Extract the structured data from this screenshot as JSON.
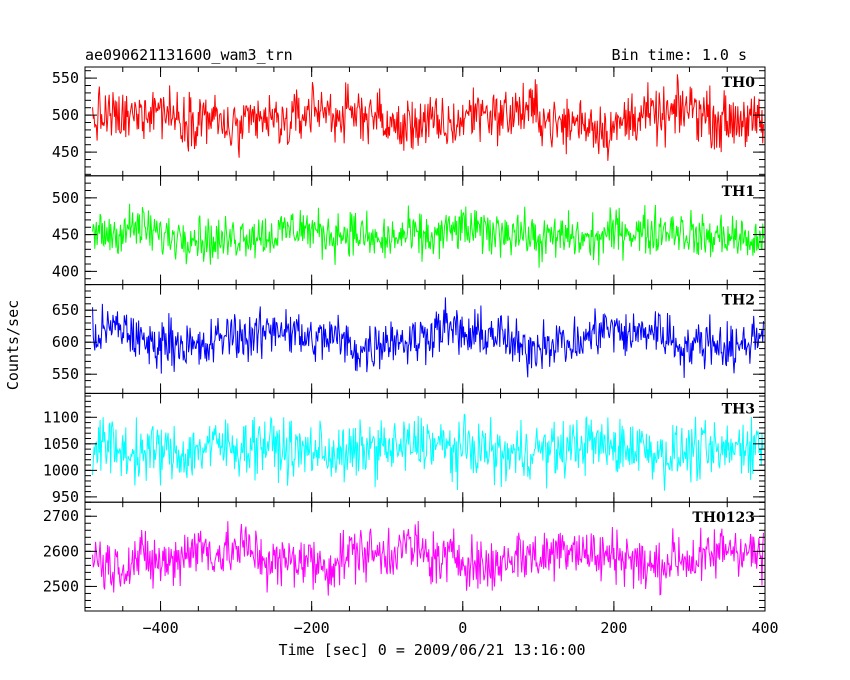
{
  "header": {
    "title": "ae090621131600_wam3_trn",
    "bin_time": "Bin time: 1.0 s"
  },
  "axes": {
    "xlabel": "Time [sec] 0 = 2009/06/21 13:16:00",
    "ylabel": "Counts/sec"
  },
  "chart_data": {
    "type": "line",
    "x_range": [
      -500,
      400
    ],
    "x_ticks": [
      -400,
      -200,
      0,
      200,
      400
    ],
    "x_tick_labels": [
      "−400",
      "−200",
      "0",
      "200",
      "400"
    ],
    "bin_time_s": 1.0,
    "panels": [
      {
        "name": "TH0",
        "color": "#ff0000",
        "ylim": [
          418,
          565
        ],
        "mean": 495,
        "noise": 26,
        "wave": 10,
        "y_ticks": [
          450,
          500,
          550
        ],
        "y_tick_labels": [
          "450",
          "500",
          "550"
        ]
      },
      {
        "name": "TH1",
        "color": "#00ff00",
        "ylim": [
          382,
          530
        ],
        "mean": 450,
        "noise": 22,
        "wave": 6,
        "y_ticks": [
          400,
          450,
          500
        ],
        "y_tick_labels": [
          "400",
          "450",
          "500"
        ]
      },
      {
        "name": "TH2",
        "color": "#0000ff",
        "ylim": [
          520,
          690
        ],
        "mean": 606,
        "noise": 27,
        "wave": 12,
        "y_ticks": [
          550,
          600,
          650
        ],
        "y_tick_labels": [
          "550",
          "600",
          "650"
        ]
      },
      {
        "name": "TH3",
        "color": "#00ffff",
        "ylim": [
          940,
          1145
        ],
        "mean": 1040,
        "noise": 38,
        "wave": 8,
        "y_ticks": [
          950,
          1000,
          1050,
          1100
        ],
        "y_tick_labels": [
          "950",
          "1000",
          "1050",
          "1100"
        ]
      },
      {
        "name": "TH0123",
        "color": "#ff00ff",
        "ylim": [
          2430,
          2740
        ],
        "mean": 2585,
        "noise": 55,
        "wave": 20,
        "y_ticks": [
          2500,
          2600,
          2700
        ],
        "y_tick_labels": [
          "2500",
          "2600",
          "2700"
        ]
      }
    ]
  }
}
